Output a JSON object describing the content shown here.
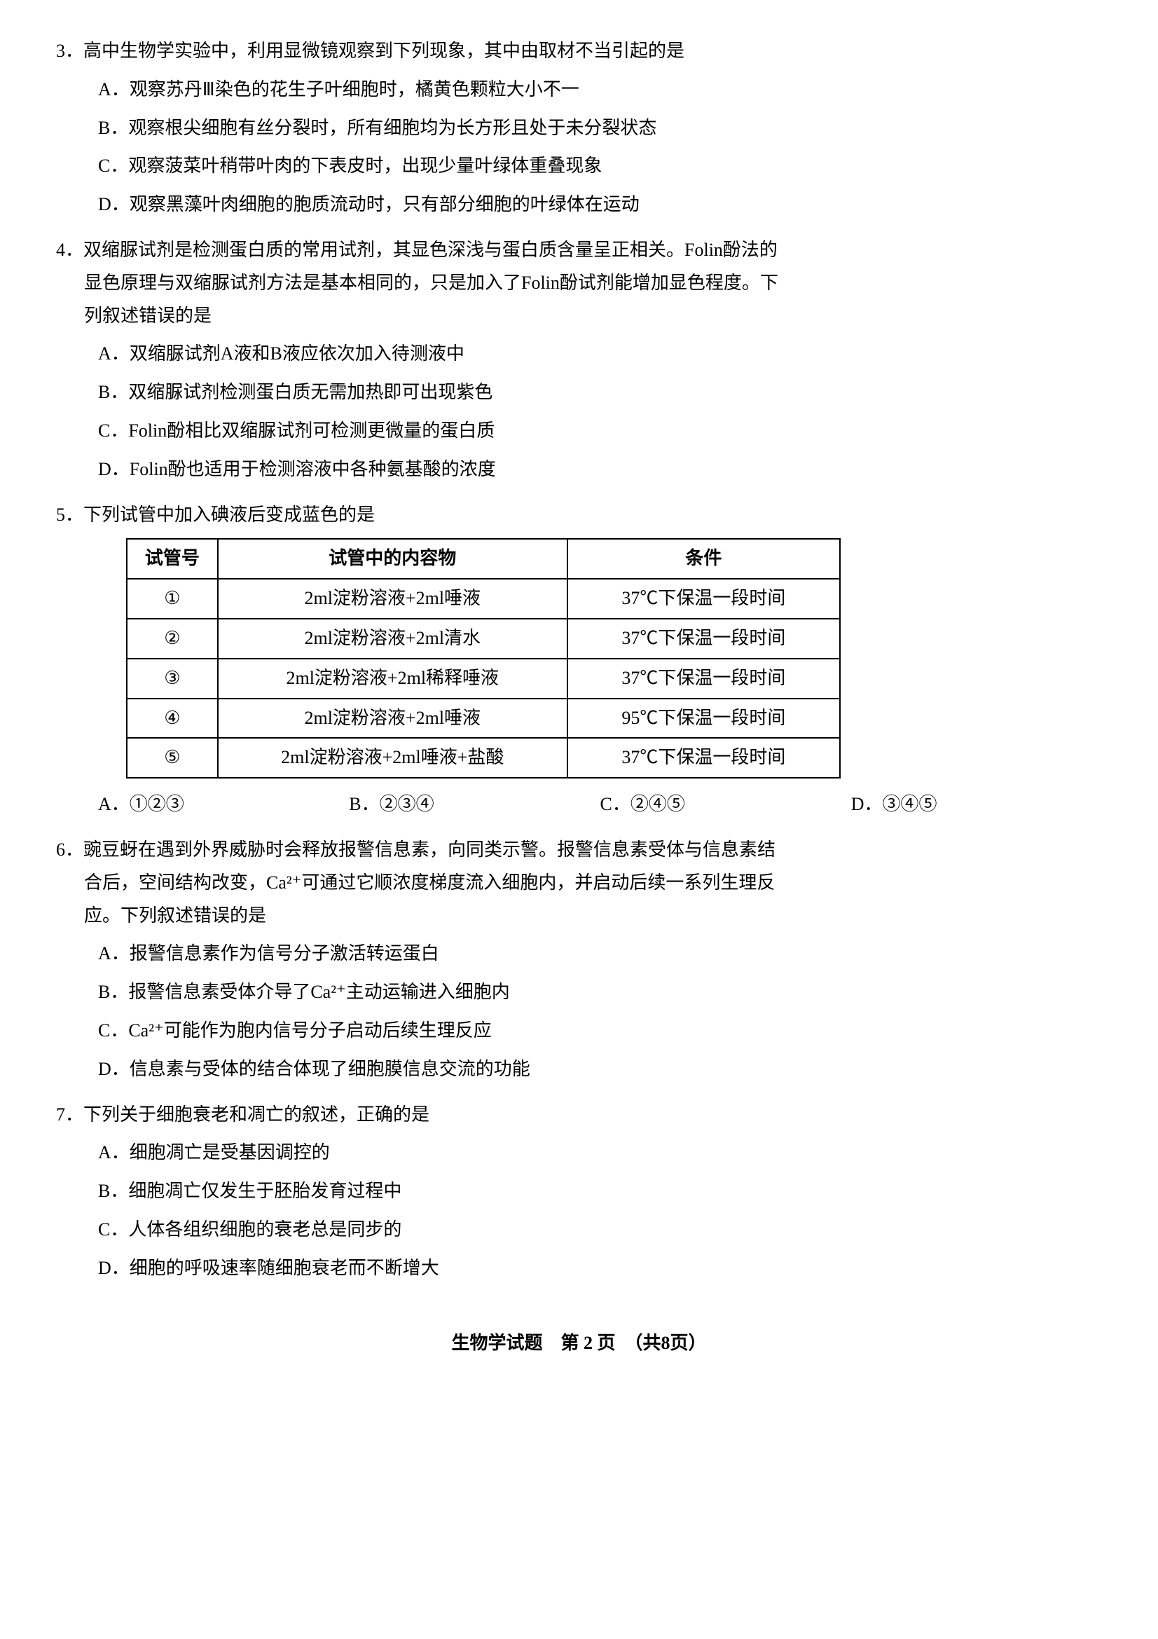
{
  "questions": {
    "q3": {
      "num": "3．",
      "stem": "高中生物学实验中，利用显微镜观察到下列现象，其中由取材不当引起的是",
      "options": {
        "A": "A．观察苏丹Ⅲ染色的花生子叶细胞时，橘黄色颗粒大小不一",
        "B": "B．观察根尖细胞有丝分裂时，所有细胞均为长方形且处于未分裂状态",
        "C": "C．观察菠菜叶稍带叶肉的下表皮时，出现少量叶绿体重叠现象",
        "D": "D．观察黑藻叶肉细胞的胞质流动时，只有部分细胞的叶绿体在运动"
      }
    },
    "q4": {
      "num": "4．",
      "stem1": "双缩脲试剂是检测蛋白质的常用试剂，其显色深浅与蛋白质含量呈正相关。Folin酚法的",
      "stem2": "显色原理与双缩脲试剂方法是基本相同的，只是加入了Folin酚试剂能增加显色程度。下",
      "stem3": "列叙述错误的是",
      "options": {
        "A": "A．双缩脲试剂A液和B液应依次加入待测液中",
        "B": "B．双缩脲试剂检测蛋白质无需加热即可出现紫色",
        "C": "C．Folin酚相比双缩脲试剂可检测更微量的蛋白质",
        "D": "D．Folin酚也适用于检测溶液中各种氨基酸的浓度"
      }
    },
    "q5": {
      "num": "5．",
      "stem": "下列试管中加入碘液后变成蓝色的是",
      "table": {
        "headers": [
          "试管号",
          "试管中的内容物",
          "条件"
        ],
        "rows": [
          [
            "①",
            "2ml淀粉溶液+2ml唾液",
            "37℃下保温一段时间"
          ],
          [
            "②",
            "2ml淀粉溶液+2ml清水",
            "37℃下保温一段时间"
          ],
          [
            "③",
            "2ml淀粉溶液+2ml稀释唾液",
            "37℃下保温一段时间"
          ],
          [
            "④",
            "2ml淀粉溶液+2ml唾液",
            "95℃下保温一段时间"
          ],
          [
            "⑤",
            "2ml淀粉溶液+2ml唾液+盐酸",
            "37℃下保温一段时间"
          ]
        ]
      },
      "answerOptions": {
        "A": "A．①②③",
        "B": "B．②③④",
        "C": "C．②④⑤",
        "D": "D．③④⑤"
      }
    },
    "q6": {
      "num": "6．",
      "stem1": "豌豆蚜在遇到外界威胁时会释放报警信息素，向同类示警。报警信息素受体与信息素结",
      "stem2": "合后，空间结构改变，Ca²⁺可通过它顺浓度梯度流入细胞内，并启动后续一系列生理反",
      "stem3": "应。下列叙述错误的是",
      "options": {
        "A": "A．报警信息素作为信号分子激活转运蛋白",
        "B": "B．报警信息素受体介导了Ca²⁺主动运输进入细胞内",
        "C": "C．Ca²⁺可能作为胞内信号分子启动后续生理反应",
        "D": "D．信息素与受体的结合体现了细胞膜信息交流的功能"
      }
    },
    "q7": {
      "num": "7．",
      "stem": "下列关于细胞衰老和凋亡的叙述，正确的是",
      "options": {
        "A": "A．细胞凋亡是受基因调控的",
        "B": "B．细胞凋亡仅发生于胚胎发育过程中",
        "C": "C．人体各组织细胞的衰老总是同步的",
        "D": "D．细胞的呼吸速率随细胞衰老而不断增大"
      }
    }
  },
  "footer": "生物学试题　第 2 页　（共8页）",
  "styling": {
    "background_color": "#ffffff",
    "text_color": "#000000",
    "font_family": "SimSun",
    "font_size": 26,
    "line_height": 1.8,
    "table_border_color": "#000000",
    "table_border_width": 2
  }
}
